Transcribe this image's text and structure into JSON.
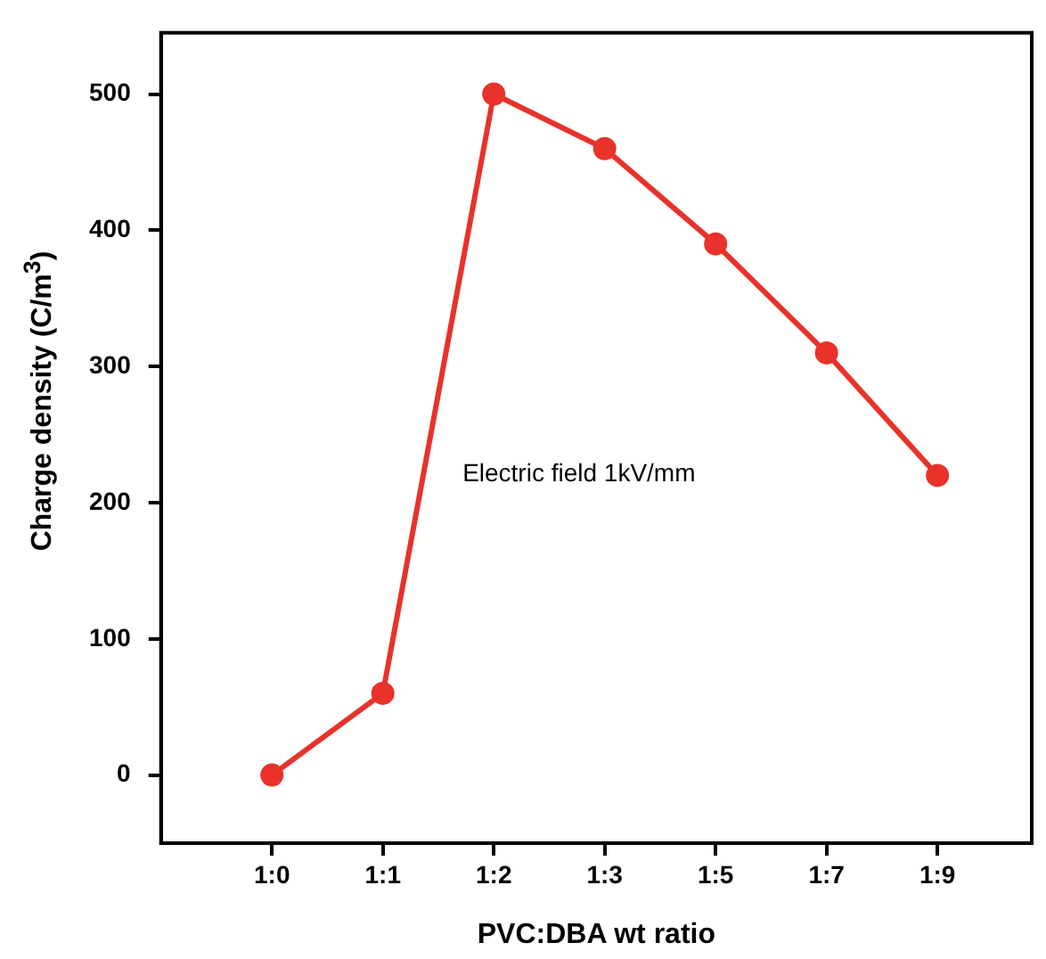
{
  "chart_data": {
    "type": "line",
    "xlabel": "PVC:DBA wt ratio",
    "ylabel": "Charge density (C/m$^{3}$)",
    "categories": [
      "1:0",
      "1:1",
      "1:2",
      "1:3",
      "1:5",
      "1:7",
      "1:9"
    ],
    "series": [
      {
        "color": "#e8322a",
        "values": [
          0,
          60,
          500,
          460,
          390,
          310,
          220
        ]
      }
    ],
    "ylim": [
      -50,
      545
    ],
    "yticks": [
      0,
      100,
      200,
      300,
      400,
      500
    ],
    "annotations": [
      "Electric field 1kV/mm"
    ],
    "grid": false,
    "legend": false,
    "marker": "circle",
    "line_style": "solid"
  }
}
